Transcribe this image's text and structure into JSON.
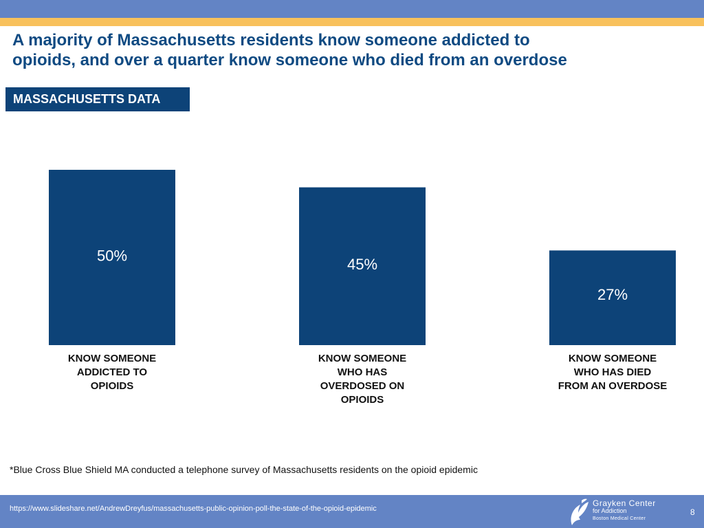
{
  "header": {
    "title_line1": "A majority of Massachusetts residents know someone addicted to",
    "title_line2": "opioids, and over a quarter know someone who died from an overdose",
    "tag": "MASSACHUSETTS DATA"
  },
  "colors": {
    "top_band": "#6384c5",
    "accent_stripe": "#f8c15c",
    "title": "#0f4a82",
    "bar": "#0d4378",
    "footer": "#6384c5"
  },
  "chart_data": {
    "type": "bar",
    "categories": [
      [
        "KNOW SOMEONE",
        "ADDICTED TO",
        "OPIOIDS"
      ],
      [
        "KNOW SOMEONE",
        "WHO HAS",
        "OVERDOSED ON",
        "OPIOIDS"
      ],
      [
        "KNOW SOMEONE",
        "WHO HAS DIED",
        "FROM AN OVERDOSE"
      ]
    ],
    "values": [
      50,
      45,
      27
    ],
    "value_labels": [
      "50%",
      "45%",
      "27%"
    ],
    "ylim": [
      0,
      50
    ],
    "grid": false,
    "title": "",
    "xlabel": "",
    "ylabel": ""
  },
  "footnote": "*Blue Cross Blue Shield MA conducted a telephone survey of Massachusetts residents on the opioid epidemic",
  "footer": {
    "url": "https://www.slideshare.net/AndrewDreyfus/massachusetts-public-opinion-poll-the-state-of-the-opioid-epidemic",
    "logo_line1": "Grayken Center",
    "logo_line2": "for Addiction",
    "logo_line3": "Boston Medical Center",
    "page_number": "8"
  }
}
